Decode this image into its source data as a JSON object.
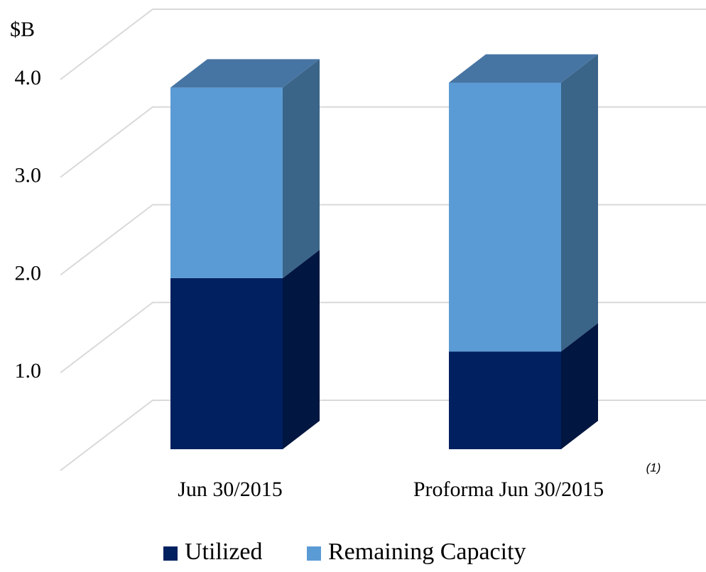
{
  "chart_data": {
    "type": "bar3d_stacked",
    "y_label": "$B",
    "categories": [
      "Jun 30/2015",
      "Proforma Jun 30/2015"
    ],
    "annotation": "(1)",
    "series": [
      {
        "name": "Utilized",
        "color": "#012060",
        "side_color": "#011640",
        "values": [
          1.75,
          1.0
        ]
      },
      {
        "name": "Remaining Capacity",
        "color": "#5b9bd5",
        "side_color": "#3a6488",
        "top_color": "#4775a3",
        "values": [
          1.95,
          2.75
        ]
      }
    ],
    "ylim": [
      0,
      4.0
    ],
    "yticks": [
      {
        "value": 1,
        "label": "1.0"
      },
      {
        "value": 2,
        "label": "2.0"
      },
      {
        "value": 3,
        "label": "3.0"
      },
      {
        "value": 4,
        "label": "4.0"
      }
    ],
    "grid": true,
    "legend": "bottom"
  }
}
